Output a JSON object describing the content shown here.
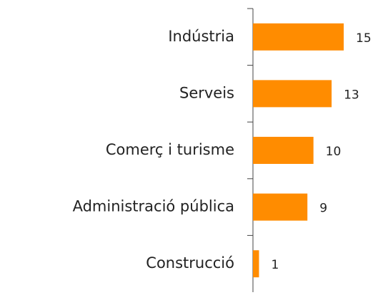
{
  "chart_data": {
    "type": "bar",
    "orientation": "horizontal",
    "categories": [
      "Indústria",
      "Serveis",
      "Comerç i turisme",
      "Administració pública",
      "Construcció"
    ],
    "values": [
      15,
      13,
      10,
      9,
      1
    ],
    "color": "#ff8c00"
  }
}
